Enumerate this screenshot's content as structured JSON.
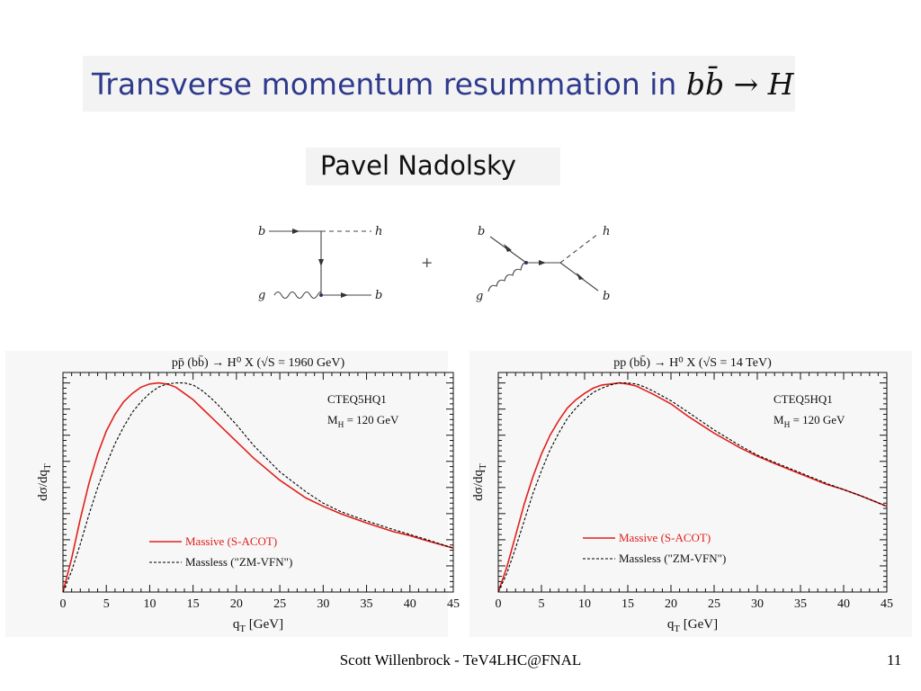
{
  "slide": {
    "title_text": "Transverse momentum resummation in ",
    "title_math": "bb̄ → H",
    "author": "Pavel Nadolsky",
    "footer": "Scott Willenbrock - TeV4LHC@FNAL",
    "page_number": "11"
  },
  "diagrams": {
    "labels": {
      "b": "b",
      "h": "h",
      "g": "g",
      "plus": "+"
    }
  },
  "colors": {
    "massive": "#e0201c",
    "massless": "#000000",
    "title": "#2e3a8c"
  },
  "chart_data": [
    {
      "type": "line",
      "title": "pp̄ (bb̄) → H⁰ X   (√S  = 1960 GeV)",
      "xlabel": "q_T  [GeV]",
      "ylabel": "dσ/dq_T",
      "xlim": [
        0,
        45
      ],
      "xticks": [
        0,
        5,
        10,
        15,
        20,
        25,
        30,
        35,
        40,
        45
      ],
      "y_ticks_labeled": false,
      "ylim": [
        0,
        1.05
      ],
      "annotations": [
        "CTEQ5HQ1",
        "M_H = 120 GeV"
      ],
      "legend": "bottom-left",
      "series": [
        {
          "name": "Massive (S-ACOT)",
          "style": "solid",
          "color": "#e0201c",
          "x": [
            0,
            1,
            2,
            3,
            4,
            5,
            6,
            7,
            8,
            9,
            10,
            11,
            12,
            13,
            14,
            15,
            16,
            17,
            18,
            20,
            22,
            25,
            28,
            30,
            32,
            35,
            38,
            40,
            42,
            45
          ],
          "y": [
            0.0,
            0.16,
            0.35,
            0.52,
            0.66,
            0.77,
            0.85,
            0.91,
            0.95,
            0.98,
            0.995,
            1.0,
            0.995,
            0.98,
            0.95,
            0.92,
            0.88,
            0.84,
            0.8,
            0.72,
            0.64,
            0.535,
            0.45,
            0.41,
            0.375,
            0.33,
            0.29,
            0.27,
            0.245,
            0.21
          ]
        },
        {
          "name": "Massless (\"ZM-VFN\")",
          "style": "dashed",
          "color": "#000000",
          "x": [
            0,
            1,
            2,
            3,
            4,
            5,
            6,
            7,
            8,
            9,
            10,
            11,
            12,
            13,
            14,
            15,
            16,
            17,
            18,
            20,
            22,
            25,
            28,
            30,
            32,
            35,
            38,
            40,
            42,
            45
          ],
          "y": [
            0.0,
            0.1,
            0.23,
            0.37,
            0.5,
            0.61,
            0.71,
            0.79,
            0.86,
            0.91,
            0.95,
            0.98,
            0.995,
            1.0,
            1.0,
            0.99,
            0.965,
            0.93,
            0.89,
            0.8,
            0.7,
            0.575,
            0.48,
            0.425,
            0.385,
            0.34,
            0.3,
            0.275,
            0.25,
            0.21
          ]
        }
      ]
    },
    {
      "type": "line",
      "title": "pp (bb̄) → H⁰ X   (√S = 14 TeV)",
      "xlabel": "q_T  [GeV]",
      "ylabel": "dσ/dq_T",
      "xlim": [
        0,
        45
      ],
      "xticks": [
        0,
        5,
        10,
        15,
        20,
        25,
        30,
        35,
        40,
        45
      ],
      "y_ticks_labeled": false,
      "ylim": [
        0,
        1.05
      ],
      "annotations": [
        "CTEQ5HQ1",
        "M_H = 120 GeV"
      ],
      "legend": "bottom-center",
      "series": [
        {
          "name": "Massive (S-ACOT)",
          "style": "solid",
          "color": "#e0201c",
          "x": [
            0,
            1,
            2,
            3,
            4,
            5,
            6,
            7,
            8,
            9,
            10,
            11,
            12,
            13,
            14,
            15,
            16,
            17,
            18,
            20,
            22,
            25,
            28,
            30,
            32,
            35,
            38,
            40,
            42,
            45
          ],
          "y": [
            0.0,
            0.12,
            0.27,
            0.42,
            0.55,
            0.66,
            0.75,
            0.82,
            0.88,
            0.92,
            0.95,
            0.975,
            0.99,
            0.995,
            1.0,
            0.995,
            0.985,
            0.965,
            0.945,
            0.9,
            0.84,
            0.76,
            0.69,
            0.65,
            0.615,
            0.565,
            0.515,
            0.49,
            0.46,
            0.41
          ]
        },
        {
          "name": "Massless (\"ZM-VFN\")",
          "style": "dashed",
          "color": "#000000",
          "x": [
            0,
            1,
            2,
            3,
            4,
            5,
            6,
            7,
            8,
            9,
            10,
            11,
            12,
            13,
            14,
            15,
            16,
            17,
            18,
            20,
            22,
            25,
            28,
            30,
            32,
            35,
            38,
            40,
            42,
            45
          ],
          "y": [
            0.0,
            0.09,
            0.21,
            0.34,
            0.47,
            0.58,
            0.68,
            0.76,
            0.83,
            0.88,
            0.92,
            0.955,
            0.975,
            0.99,
            1.0,
            1.0,
            0.995,
            0.98,
            0.96,
            0.915,
            0.86,
            0.775,
            0.7,
            0.655,
            0.62,
            0.57,
            0.52,
            0.49,
            0.46,
            0.41
          ]
        }
      ]
    }
  ]
}
